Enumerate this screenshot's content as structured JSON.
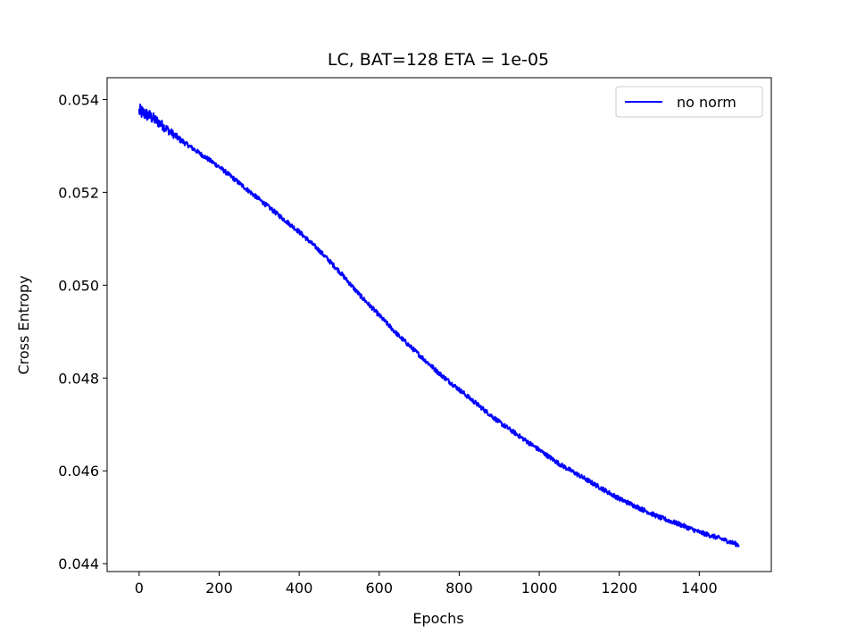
{
  "chart_data": {
    "type": "line",
    "title": "LC, BAT=128 ETA = 1e-05",
    "xlabel": "Epochs",
    "ylabel": "Cross Entropy",
    "xlim": [
      -80,
      1580
    ],
    "ylim": [
      0.04383,
      0.05447
    ],
    "xticks": [
      0,
      200,
      400,
      600,
      800,
      1000,
      1200,
      1400
    ],
    "xtick_labels": [
      "0",
      "200",
      "400",
      "600",
      "800",
      "1000",
      "1200",
      "1400"
    ],
    "yticks": [
      0.044,
      0.046,
      0.048,
      0.05,
      0.052,
      0.054
    ],
    "ytick_labels": [
      "0.044",
      "0.046",
      "0.048",
      "0.050",
      "0.052",
      "0.054"
    ],
    "grid": false,
    "legend": {
      "position": "top-right",
      "entries": [
        "no norm"
      ]
    },
    "series": [
      {
        "name": "no norm",
        "color": "#0000ff",
        "x": [
          0,
          25,
          50,
          100,
          150,
          200,
          250,
          300,
          350,
          400,
          450,
          500,
          550,
          600,
          650,
          700,
          750,
          800,
          850,
          900,
          950,
          1000,
          1050,
          1100,
          1150,
          1200,
          1250,
          1300,
          1350,
          1400,
          1450,
          1500
        ],
        "y": [
          0.05375,
          0.05365,
          0.0535,
          0.05315,
          0.05285,
          0.05255,
          0.0522,
          0.05185,
          0.0515,
          0.05115,
          0.05075,
          0.0503,
          0.0498,
          0.04935,
          0.0489,
          0.0485,
          0.0481,
          0.04775,
          0.0474,
          0.04705,
          0.04675,
          0.04645,
          0.04615,
          0.0459,
          0.04565,
          0.0454,
          0.0452,
          0.045,
          0.04485,
          0.04468,
          0.04455,
          0.0444
        ]
      }
    ]
  }
}
